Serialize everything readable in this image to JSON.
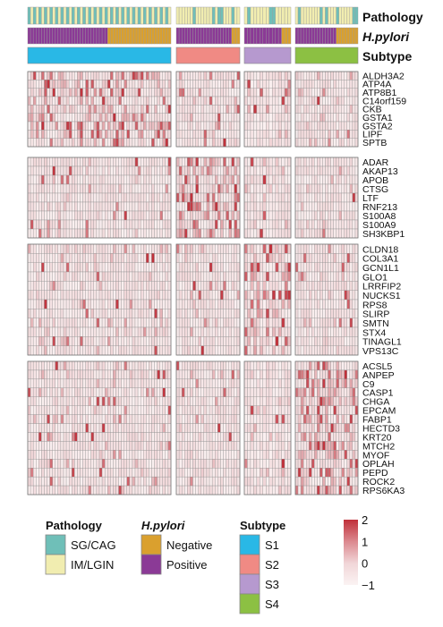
{
  "chart_data": {
    "type": "heatmap",
    "annotation_tracks": [
      {
        "name": "Pathology",
        "italic": false
      },
      {
        "name": "H.pylori",
        "italic": true
      },
      {
        "name": "Subtype",
        "italic": false
      }
    ],
    "column_groups": [
      {
        "subtype": "S1",
        "n_columns": 52,
        "pathology_pattern": "mixed SG/CAG and IM/LGIN, predominantly alternating",
        "hpylori_positive_fraction": 0.56
      },
      {
        "subtype": "S2",
        "n_columns": 23,
        "pathology_pattern": "mixed, mostly IM/LGIN",
        "hpylori_positive_fraction": 0.85
      },
      {
        "subtype": "S3",
        "n_columns": 15,
        "pathology_pattern": "mixed, mostly IM/LGIN",
        "hpylori_positive_fraction": 0.8
      },
      {
        "subtype": "S4",
        "n_columns": 23,
        "pathology_pattern": "mixed SG/CAG and IM/LGIN",
        "hpylori_positive_fraction": 0.65
      }
    ],
    "gene_blocks": [
      {
        "enriched_in": "S1",
        "genes": [
          "ALDH3A2",
          "ATP4A",
          "ATP8B1",
          "C14orf159",
          "CKB",
          "GSTA1",
          "GSTA2",
          "LIPF",
          "SPTB"
        ]
      },
      {
        "enriched_in": "S2",
        "genes": [
          "ADAR",
          "AKAP13",
          "APOB",
          "CTSG",
          "LTF",
          "RNF213",
          "S100A8",
          "S100A9",
          "SH3KBP1"
        ]
      },
      {
        "enriched_in": "S3",
        "genes": [
          "CLDN18",
          "COL3A1",
          "GCN1L1",
          "GLO1",
          "LRRFIP2",
          "NUCKS1",
          "RPS8",
          "SLIRP",
          "SMTN",
          "STX4",
          "TINAGL1",
          "VPS13C"
        ]
      },
      {
        "enriched_in": "S4",
        "genes": [
          "ACSL5",
          "ANPEP",
          "C9",
          "CASP1",
          "CHGA",
          "EPCAM",
          "FABP1",
          "HECTD3",
          "KRT20",
          "MTCH2",
          "MYOF",
          "OPLAH",
          "PEPD",
          "ROCK2",
          "RPS6KA3"
        ]
      }
    ],
    "color_scale": {
      "min": -1,
      "max": 2,
      "ticks": [
        2,
        1,
        0,
        -1
      ],
      "tick_labels": [
        "2",
        "1",
        "0",
        "−1"
      ],
      "low_color": "#fbf3f3",
      "high_color": "#c0303a"
    },
    "legend": {
      "pathology": {
        "title": "Pathology",
        "items": [
          {
            "label": "SG/CAG",
            "color": "#6fbfb8"
          },
          {
            "label": "IM/LGIN",
            "color": "#f1edb0"
          }
        ]
      },
      "hpylori": {
        "title": "H.pylori",
        "items": [
          {
            "label": "Negative",
            "color": "#daa02e"
          },
          {
            "label": "Positive",
            "color": "#8b3a96"
          }
        ]
      },
      "subtype": {
        "title": "Subtype",
        "items": [
          {
            "label": "S1",
            "color": "#29b8e6"
          },
          {
            "label": "S2",
            "color": "#f08a84"
          },
          {
            "label": "S3",
            "color": "#b699cf"
          },
          {
            "label": "S4",
            "color": "#8cc043"
          }
        ]
      }
    },
    "grid": true
  }
}
